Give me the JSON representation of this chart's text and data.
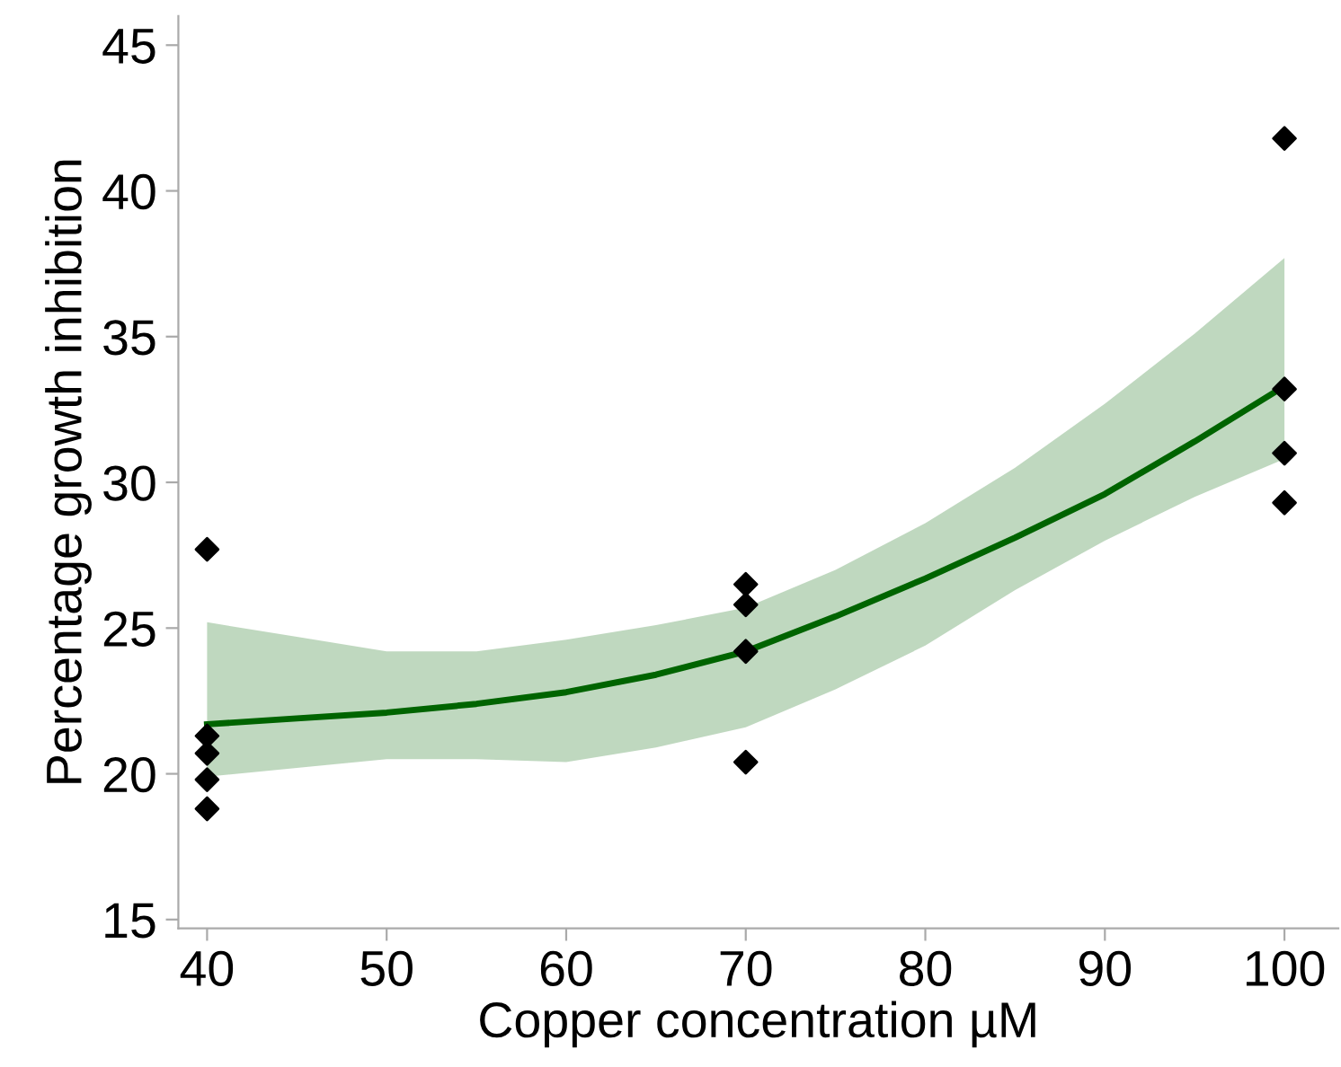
{
  "chart_data": {
    "type": "scatter",
    "xlabel": "Copper concentration µM",
    "ylabel": "Percentage growth inhibition",
    "xlim": [
      38.4,
      103
    ],
    "ylim": [
      14.7,
      46
    ],
    "xticks": [
      40,
      50,
      60,
      70,
      80,
      90,
      100
    ],
    "yticks": [
      15,
      20,
      25,
      30,
      35,
      40,
      45
    ],
    "grid": false,
    "series": [
      {
        "marker": "diamond",
        "color": "#000000",
        "x": [
          40,
          40,
          40,
          40,
          40,
          70,
          70,
          70,
          70,
          100,
          100,
          100,
          100
        ],
        "values": [
          27.7,
          21.3,
          20.7,
          19.8,
          18.8,
          26.5,
          25.8,
          24.2,
          20.4,
          41.8,
          33.2,
          31.0,
          29.3
        ]
      },
      {
        "type": "line",
        "marker": "none",
        "color": "#006400",
        "line_style": "solid",
        "x": [
          40,
          45,
          50,
          55,
          60,
          65,
          70,
          75,
          80,
          85,
          90,
          95,
          100
        ],
        "values": [
          21.7,
          21.9,
          22.1,
          22.4,
          22.8,
          23.4,
          24.2,
          25.4,
          26.7,
          28.1,
          29.6,
          31.4,
          33.3
        ],
        "lower": [
          19.9,
          20.2,
          20.5,
          20.5,
          20.4,
          20.9,
          21.6,
          22.9,
          24.4,
          26.3,
          28.0,
          29.5,
          30.8
        ],
        "upper": [
          25.2,
          24.7,
          24.2,
          24.2,
          24.6,
          25.1,
          25.7,
          27.0,
          28.6,
          30.5,
          32.7,
          35.1,
          37.7
        ]
      }
    ]
  }
}
